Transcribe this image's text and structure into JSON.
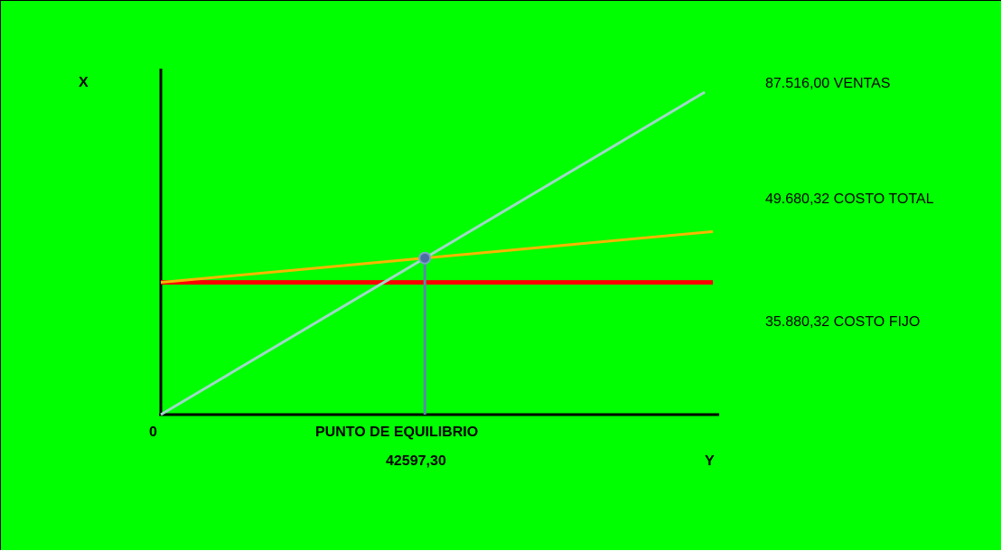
{
  "background_color": "#00ff00",
  "chart_data": {
    "type": "line",
    "axis_labels": {
      "x_axis_letter": "Y",
      "y_axis_letter": "X",
      "origin": "0"
    },
    "series": [
      {
        "name": "VENTAS",
        "label_value": "87.516,00",
        "color": "#9fd8c8",
        "start": 0,
        "end": 87516.0
      },
      {
        "name": "COSTO TOTAL",
        "label_value": "49.680,32",
        "color": "#f5b800",
        "start": 35880.32,
        "end": 49680.32
      },
      {
        "name": "COSTO FIJO",
        "label_value": "35.880,32",
        "color": "#ff0000",
        "start": 35880.32,
        "end": 35880.32
      }
    ],
    "breakeven": {
      "label": "PUNTO DE EQUILIBRIO",
      "value_text": "42597,30",
      "value": 42597.3,
      "marker_color": "#4a6fa5",
      "line_color": "#5a8aa8"
    }
  }
}
